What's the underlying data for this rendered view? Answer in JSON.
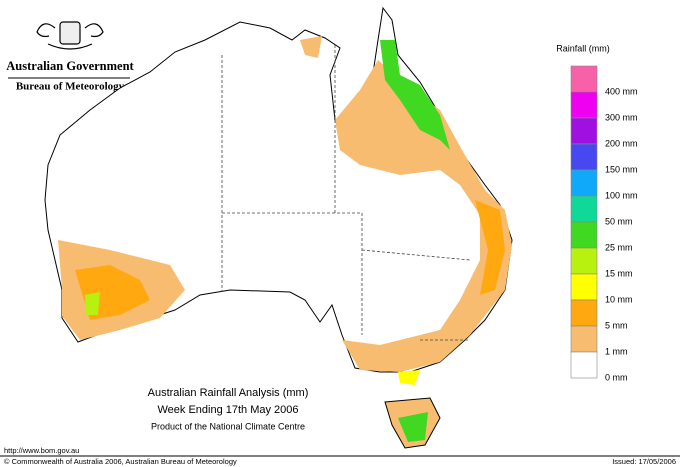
{
  "header": {
    "government": "Australian Government",
    "bureau": "Bureau of Meteorology"
  },
  "legend": {
    "title": "Rainfall (mm)",
    "items": [
      {
        "label": "400 mm",
        "color": "#f860a8"
      },
      {
        "label": "300 mm",
        "color": "#f000f0"
      },
      {
        "label": "200 mm",
        "color": "#a010e0"
      },
      {
        "label": "150 mm",
        "color": "#4848f0"
      },
      {
        "label": "100 mm",
        "color": "#10a8f8"
      },
      {
        "label": "50 mm",
        "color": "#10d898"
      },
      {
        "label": "25 mm",
        "color": "#40d820"
      },
      {
        "label": "15 mm",
        "color": "#b8f010"
      },
      {
        "label": "10 mm",
        "color": "#ffff00"
      },
      {
        "label": "5 mm",
        "color": "#ffa810"
      },
      {
        "label": "1 mm",
        "color": "#f8bc70"
      },
      {
        "label": "0 mm",
        "color": "#ffffff"
      }
    ]
  },
  "title": {
    "line1": "Australian Rainfall Analysis (mm)",
    "line2": "Week Ending 17th May 2006",
    "line3": "Product of the National Climate Centre"
  },
  "footer": {
    "url": "http://www.bom.gov.au",
    "copyright": "© Commonwealth of Australia 2006, Australian Bureau of Meteorology",
    "issued": "Issued: 17/05/2006"
  }
}
